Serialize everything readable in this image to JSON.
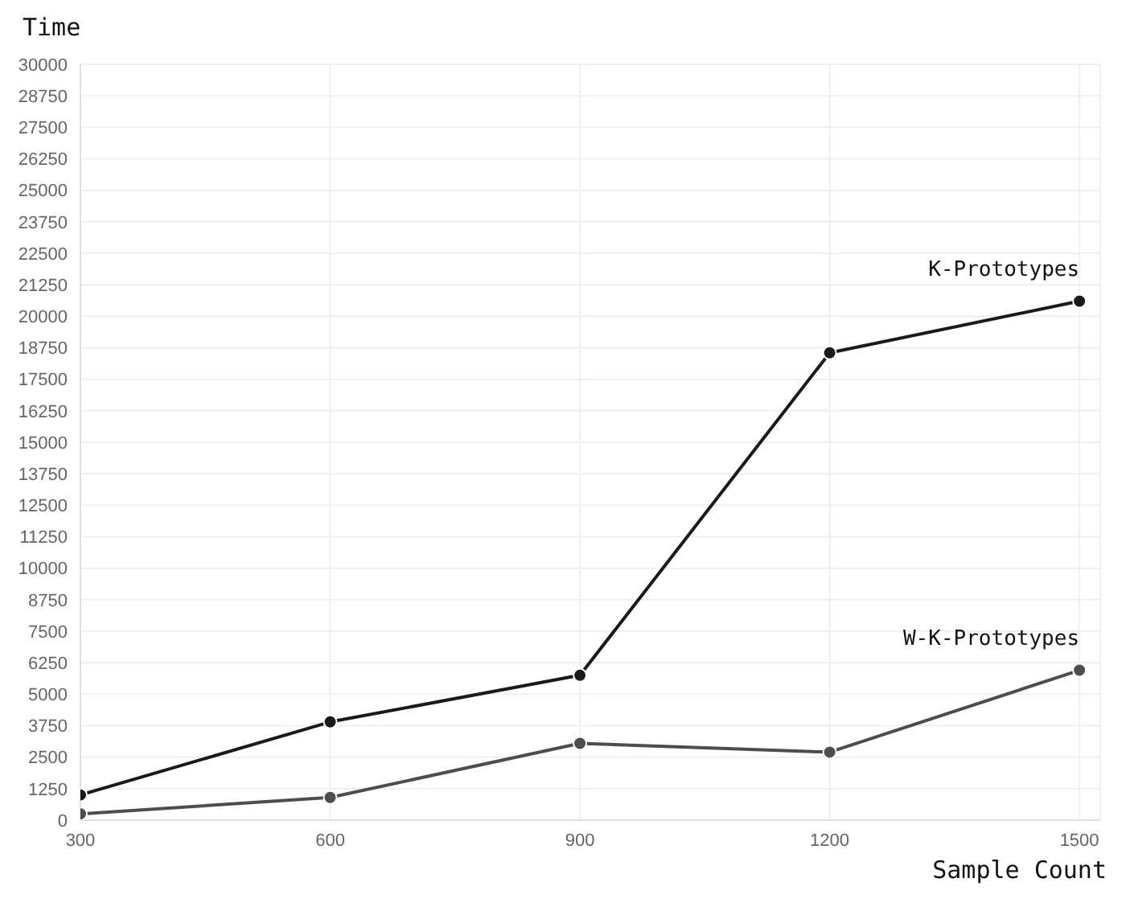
{
  "chart_data": {
    "type": "line",
    "xlabel": "Sample Count",
    "ylabel": "Time",
    "x": [
      300,
      600,
      900,
      1200,
      1500
    ],
    "series": [
      {
        "name": "K-Prototypes",
        "color": "#1a1a1a",
        "values": [
          1000,
          3900,
          5750,
          18550,
          20600
        ]
      },
      {
        "name": "W-K-Prototypes",
        "color": "#4d4d4d",
        "values": [
          250,
          900,
          3050,
          2700,
          5950
        ]
      }
    ],
    "xlim": [
      300,
      1525
    ],
    "xticks": [
      300,
      600,
      900,
      1200,
      1500
    ],
    "ylim": [
      0,
      30000
    ],
    "yticks": [
      0,
      1250,
      2500,
      3750,
      5000,
      6250,
      7500,
      8750,
      10000,
      11250,
      12500,
      13750,
      15000,
      16250,
      17500,
      18750,
      20000,
      21250,
      22500,
      23750,
      25000,
      26250,
      27500,
      28750,
      30000
    ],
    "grid": true,
    "legend": false,
    "marker": "circle",
    "line_style": "solid"
  }
}
